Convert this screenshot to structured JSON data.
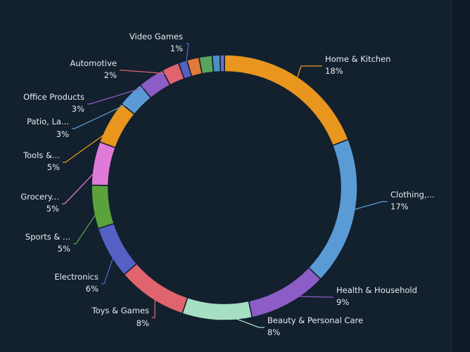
{
  "chart_data": {
    "type": "pie",
    "style": "donut",
    "categories": [
      "Home & Kitchen",
      "Clothing,...",
      "Health & Household",
      "Beauty & Personal Care",
      "Toys & Games",
      "Electronics",
      "Sports & ...",
      "Grocery...",
      "Tools &...",
      "Patio, La...",
      "Office Products",
      "Automotive",
      "Video Games"
    ],
    "values": [
      18,
      17,
      9,
      8,
      8,
      6,
      5,
      5,
      5,
      3,
      3,
      2,
      1
    ],
    "value_labels": [
      "18%",
      "17%",
      "9%",
      "8%",
      "8%",
      "6%",
      "5%",
      "5%",
      "5%",
      "3%",
      "3%",
      "2%",
      "1%"
    ],
    "unlabeled_slices": [
      {
        "color": "#e07a3a",
        "value": 1.4
      },
      {
        "color": "#5aa35a",
        "value": 1.5
      },
      {
        "color": "#4a8fc4",
        "value": 0.9
      },
      {
        "color": "#6a6fd0",
        "value": 0.5
      }
    ],
    "colors": [
      "#e8961e",
      "#5b9bd5",
      "#8c5cc7",
      "#a6dfc2",
      "#e0646e",
      "#5561c4",
      "#5aa33c",
      "#e07ad8",
      "#e8961e",
      "#5b9bd5",
      "#8c5cc7",
      "#e0646e",
      "#5561c4"
    ],
    "other_slice_colors": [
      "#a6dfc2",
      "#5561c4",
      "#5aa33c",
      "#e07ad8"
    ],
    "title": "",
    "legend": "none"
  }
}
